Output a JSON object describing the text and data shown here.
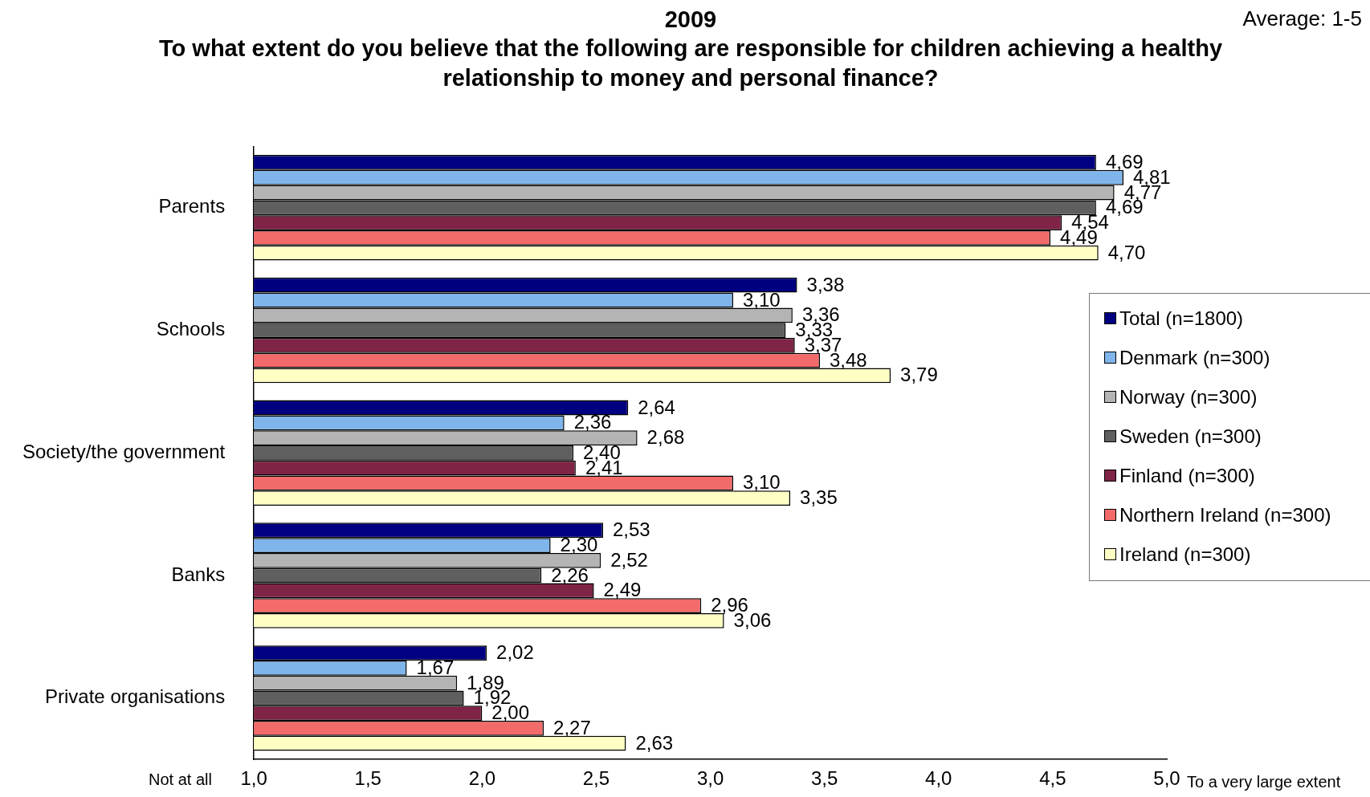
{
  "chart_data": {
    "type": "bar",
    "orientation": "horizontal",
    "title": "2009",
    "subtitle": "To what extent do you believe that the following are responsible for children achieving a healthy relationship to money and personal finance?",
    "annotations": [
      "Average: 1-5",
      "Not at all",
      "To a very large extent"
    ],
    "categories": [
      "Parents",
      "Schools",
      "Society/the government",
      "Banks",
      "Private organisations"
    ],
    "xlim": [
      1,
      5
    ],
    "xticks": [
      {
        "value": 1,
        "label": "1,0"
      },
      {
        "value": 1.5,
        "label": "1,5"
      },
      {
        "value": 2,
        "label": "2,0"
      },
      {
        "value": 2.5,
        "label": "2,5"
      },
      {
        "value": 3,
        "label": "3,0"
      },
      {
        "value": 3.5,
        "label": "3,5"
      },
      {
        "value": 4,
        "label": "4,0"
      },
      {
        "value": 4.5,
        "label": "4,5"
      },
      {
        "value": 5,
        "label": "5,0"
      }
    ],
    "grid": false,
    "legend": "right",
    "series": [
      {
        "name": "Total (n=1800)",
        "color": "#000080",
        "values": [
          4.69,
          3.38,
          2.64,
          2.53,
          2.02
        ],
        "value_labels": [
          "4,69",
          "3,38",
          "2,64",
          "2,53",
          "2,02"
        ]
      },
      {
        "name": "Denmark (n=300)",
        "color": "#7fb5ea",
        "values": [
          4.81,
          3.1,
          2.36,
          2.3,
          1.67
        ],
        "value_labels": [
          "4,81",
          "3,10",
          "2,36",
          "2,30",
          "1,67"
        ]
      },
      {
        "name": "Norway (n=300)",
        "color": "#b4b4b4",
        "values": [
          4.77,
          3.36,
          2.68,
          2.52,
          1.89
        ],
        "value_labels": [
          "4,77",
          "3,36",
          "2,68",
          "2,52",
          "1,89"
        ]
      },
      {
        "name": "Sweden (n=300)",
        "color": "#5f5f5f",
        "values": [
          4.69,
          3.33,
          2.4,
          2.26,
          1.92
        ],
        "value_labels": [
          "4,69",
          "3,33",
          "2,40",
          "2,26",
          "1,92"
        ]
      },
      {
        "name": "Finland (n=300)",
        "color": "#7f2447",
        "values": [
          4.54,
          3.37,
          2.41,
          2.49,
          2.0
        ],
        "value_labels": [
          "4,54",
          "3,37",
          "2,41",
          "2,49",
          "2,00"
        ]
      },
      {
        "name": "Northern Ireland (n=300)",
        "color": "#f26a6a",
        "values": [
          4.49,
          3.48,
          3.1,
          2.96,
          2.27
        ],
        "value_labels": [
          "4,49",
          "3,48",
          "3,10",
          "2,96",
          "2,27"
        ]
      },
      {
        "name": "Ireland (n=300)",
        "color": "#ffffc4",
        "values": [
          4.7,
          3.79,
          3.35,
          3.06,
          2.63
        ],
        "value_labels": [
          "4,70",
          "3,79",
          "3,35",
          "3,06",
          "2,63"
        ]
      }
    ]
  }
}
